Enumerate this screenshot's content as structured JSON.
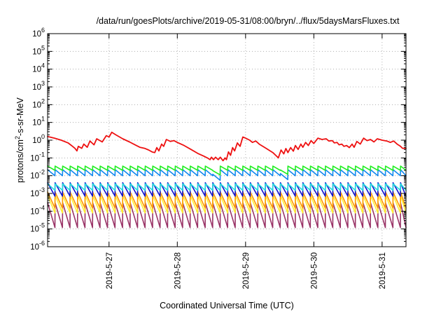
{
  "chart_data": {
    "type": "line",
    "title": "/data/run/goesPlots/archive/2019-05-31/08:00/bryn/../flux/5daysMarsFluxes.txt",
    "xlabel": "Coordinated Universal Time (UTC)",
    "ylabel_parts": {
      "pre": "protons/cm",
      "sup": "2",
      "post": "-s-sr-MeV"
    },
    "yscale": "log",
    "ylim": [
      1e-06,
      1000000.0
    ],
    "y_ticks": [
      {
        "base": "10",
        "exp": "-6"
      },
      {
        "base": "10",
        "exp": "-5"
      },
      {
        "base": "10",
        "exp": "-4"
      },
      {
        "base": "10",
        "exp": "-3"
      },
      {
        "base": "10",
        "exp": "-2"
      },
      {
        "base": "10",
        "exp": "-1"
      },
      {
        "base": "10",
        "exp": "0"
      },
      {
        "base": "10",
        "exp": "1"
      },
      {
        "base": "10",
        "exp": "2"
      },
      {
        "base": "10",
        "exp": "3"
      },
      {
        "base": "10",
        "exp": "4"
      },
      {
        "base": "10",
        "exp": "5"
      },
      {
        "base": "10",
        "exp": "6"
      }
    ],
    "xlim_days": [
      26.1,
      31.35
    ],
    "x_ticks": [
      {
        "label": "2019-5-27",
        "day": 27
      },
      {
        "label": "2019-5-28",
        "day": 28
      },
      {
        "label": "2019-5-29",
        "day": 29
      },
      {
        "label": "2019-5-30",
        "day": 30
      },
      {
        "label": "2019-5-31",
        "day": 31
      }
    ],
    "grid": true,
    "series": [
      {
        "color": "#ee1111",
        "points": [
          [
            26.1,
            1.6
          ],
          [
            26.2,
            1.3
          ],
          [
            26.3,
            1.0
          ],
          [
            26.4,
            0.7
          ],
          [
            26.45,
            0.5
          ],
          [
            26.5,
            0.35
          ],
          [
            26.53,
            0.25
          ],
          [
            26.55,
            0.45
          ],
          [
            26.6,
            0.35
          ],
          [
            26.63,
            0.6
          ],
          [
            26.68,
            0.4
          ],
          [
            26.72,
            0.9
          ],
          [
            26.78,
            0.55
          ],
          [
            26.82,
            1.2
          ],
          [
            26.9,
            0.8
          ],
          [
            26.96,
            1.8
          ],
          [
            27.0,
            1.5
          ],
          [
            27.04,
            2.8
          ],
          [
            27.1,
            2.0
          ],
          [
            27.2,
            1.2
          ],
          [
            27.3,
            0.8
          ],
          [
            27.38,
            0.55
          ],
          [
            27.45,
            0.4
          ],
          [
            27.52,
            0.35
          ],
          [
            27.58,
            0.28
          ],
          [
            27.63,
            0.22
          ],
          [
            27.67,
            0.2
          ],
          [
            27.7,
            0.38
          ],
          [
            27.73,
            0.25
          ],
          [
            27.77,
            0.6
          ],
          [
            27.8,
            0.45
          ],
          [
            27.84,
            1.1
          ],
          [
            27.9,
            0.85
          ],
          [
            27.95,
            0.95
          ],
          [
            28.0,
            0.75
          ],
          [
            28.1,
            0.5
          ],
          [
            28.2,
            0.3
          ],
          [
            28.3,
            0.18
          ],
          [
            28.38,
            0.13
          ],
          [
            28.44,
            0.1
          ],
          [
            28.48,
            0.08
          ],
          [
            28.5,
            0.11
          ],
          [
            28.53,
            0.08
          ],
          [
            28.56,
            0.11
          ],
          [
            28.6,
            0.08
          ],
          [
            28.63,
            0.11
          ],
          [
            28.67,
            0.07
          ],
          [
            28.7,
            0.1
          ],
          [
            28.72,
            0.08
          ],
          [
            28.75,
            0.22
          ],
          [
            28.78,
            0.14
          ],
          [
            28.81,
            0.38
          ],
          [
            28.84,
            0.25
          ],
          [
            28.88,
            0.7
          ],
          [
            28.92,
            0.45
          ],
          [
            28.96,
            1.5
          ],
          [
            29.0,
            1.3
          ],
          [
            29.06,
            1.0
          ],
          [
            29.1,
            0.75
          ],
          [
            29.15,
            0.9
          ],
          [
            29.2,
            0.6
          ],
          [
            29.3,
            0.35
          ],
          [
            29.4,
            0.2
          ],
          [
            29.45,
            0.13
          ],
          [
            29.48,
            0.1
          ],
          [
            29.52,
            0.28
          ],
          [
            29.56,
            0.17
          ],
          [
            29.59,
            0.34
          ],
          [
            29.62,
            0.2
          ],
          [
            29.66,
            0.38
          ],
          [
            29.7,
            0.24
          ],
          [
            29.73,
            0.5
          ],
          [
            29.77,
            0.3
          ],
          [
            29.81,
            0.6
          ],
          [
            29.84,
            0.4
          ],
          [
            29.88,
            0.75
          ],
          [
            29.92,
            0.5
          ],
          [
            29.96,
            0.95
          ],
          [
            30.0,
            0.65
          ],
          [
            30.06,
            1.3
          ],
          [
            30.12,
            1.1
          ],
          [
            30.18,
            1.2
          ],
          [
            30.22,
            0.9
          ],
          [
            30.27,
            0.95
          ],
          [
            30.3,
            0.7
          ],
          [
            30.34,
            0.75
          ],
          [
            30.37,
            0.55
          ],
          [
            30.41,
            0.6
          ],
          [
            30.44,
            0.45
          ],
          [
            30.48,
            0.5
          ],
          [
            30.52,
            0.38
          ],
          [
            30.56,
            0.6
          ],
          [
            30.59,
            0.4
          ],
          [
            30.63,
            0.85
          ],
          [
            30.68,
            0.6
          ],
          [
            30.73,
            1.3
          ],
          [
            30.78,
            0.95
          ],
          [
            30.83,
            1.1
          ],
          [
            30.88,
            0.8
          ],
          [
            30.93,
            1.2
          ],
          [
            31.0,
            1.0
          ],
          [
            31.07,
            0.9
          ],
          [
            31.12,
            0.75
          ],
          [
            31.17,
            0.9
          ],
          [
            31.22,
            0.6
          ],
          [
            31.27,
            0.45
          ],
          [
            31.3,
            0.35
          ],
          [
            31.35,
            0.35
          ]
        ]
      },
      {
        "color": "#22ee22",
        "template": {
          "start": 26.1,
          "end": 31.35,
          "period": 0.11,
          "sawtooth": [
            0.035,
            0.02
          ],
          "dips": [
            [
              28.45,
              28.56,
              0.55
            ],
            [
              29.45,
              29.6,
              0.6
            ]
          ]
        }
      },
      {
        "color": "#1188ee",
        "template": {
          "start": 26.1,
          "end": 31.35,
          "period": 0.11,
          "sawtooth": [
            0.022,
            0.01
          ],
          "dips": [
            [
              28.45,
              28.56,
              0.55
            ],
            [
              29.45,
              29.6,
              0.6
            ]
          ]
        }
      },
      {
        "color": "#22dddd",
        "template": {
          "start": 26.1,
          "end": 31.35,
          "period": 0.11,
          "sawtooth": [
            0.0035,
            0.0015
          ],
          "dips": []
        }
      },
      {
        "color": "#1111cc",
        "template": {
          "start": 26.1,
          "end": 31.35,
          "period": 0.11,
          "sawtooth": [
            0.004,
            0.0007
          ],
          "dips": []
        }
      },
      {
        "color": "#ff9900",
        "template": {
          "start": 26.1,
          "end": 31.35,
          "period": 0.11,
          "sawtooth": [
            0.0012,
            0.00015
          ],
          "dips": []
        }
      },
      {
        "color": "#ffee33",
        "template": {
          "start": 26.1,
          "end": 31.35,
          "period": 0.11,
          "sawtooth": [
            0.0008,
            8e-05
          ],
          "dips": []
        }
      },
      {
        "color": "#993366",
        "template": {
          "start": 26.1,
          "end": 31.35,
          "period": 0.11,
          "sawtooth": [
            0.0003,
            1.2e-05
          ],
          "dips": []
        }
      }
    ]
  }
}
